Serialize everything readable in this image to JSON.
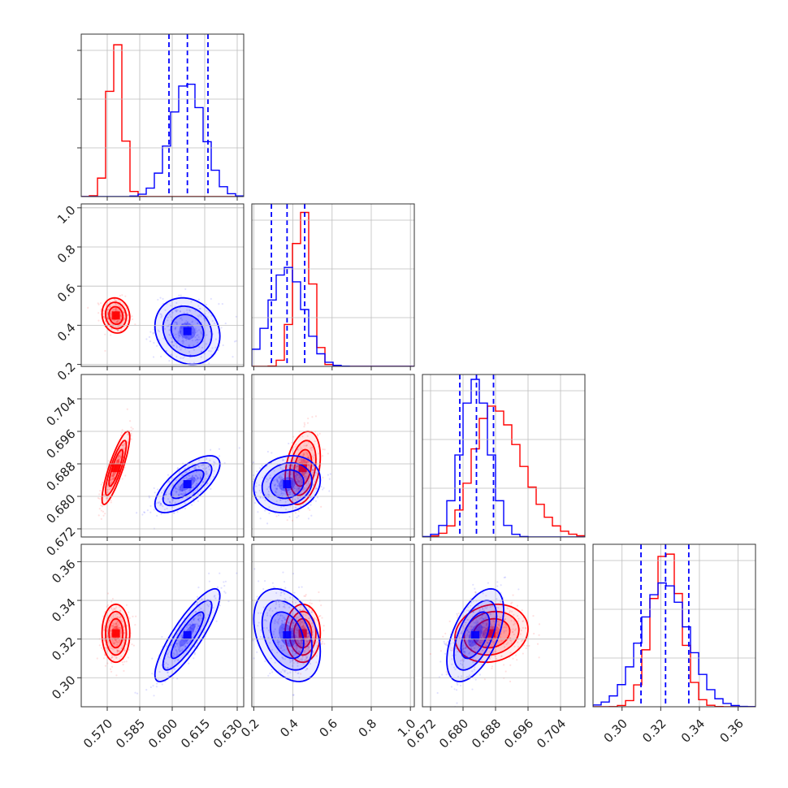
{
  "chart_data": {
    "type": "corner",
    "description_note": "",
    "parameters": [
      {
        "range": [
          0.558,
          0.633
        ],
        "ticks": [
          0.57,
          0.585,
          0.6,
          0.615,
          0.63
        ],
        "tick_labels": [
          "0.570",
          "0.585",
          "0.600",
          "0.615",
          "0.630"
        ]
      },
      {
        "range": [
          0.19,
          1.02
        ],
        "ticks": [
          0.2,
          0.4,
          0.6,
          0.8,
          1.0
        ],
        "tick_labels": [
          "0.2",
          "0.4",
          "0.6",
          "0.8",
          "1.0"
        ]
      },
      {
        "range": [
          0.67,
          0.71
        ],
        "ticks": [
          0.672,
          0.68,
          0.688,
          0.696,
          0.704
        ],
        "tick_labels": [
          "0.672",
          "0.680",
          "0.688",
          "0.696",
          "0.704"
        ]
      },
      {
        "range": [
          0.285,
          0.369
        ],
        "ticks": [
          0.3,
          0.32,
          0.34,
          0.36
        ],
        "tick_labels": [
          "0.30",
          "0.32",
          "0.34",
          "0.36"
        ]
      }
    ],
    "series": [
      {
        "color": "#ff0000",
        "means": [
          0.574,
          0.45,
          0.687,
          0.323
        ],
        "sigmas": [
          0.0032,
          0.045,
          0.0045,
          0.0075
        ],
        "correlations": {
          "1-0": -0.1,
          "2-0": 0.85,
          "2-1": 0.3,
          "3-0": 0.0,
          "3-1": 0.0,
          "3-2": 0.15
        },
        "hist_peaks": [
          1.0,
          1.0,
          0.83,
          1.0
        ]
      },
      {
        "color": "#0000ff",
        "means": [
          0.607,
          0.37,
          0.683,
          0.322
        ],
        "sigmas": [
          0.0075,
          0.085,
          0.0035,
          0.012
        ],
        "correlations": {
          "1-0": -0.15,
          "2-0": 0.7,
          "2-1": 0.15,
          "3-0": 0.85,
          "3-1": -0.35,
          "3-2": 0.55
        },
        "hist_peaks": [
          0.73,
          0.63,
          1.0,
          0.79
        ]
      }
    ],
    "quantile_lines": {
      "color": "#0000ff",
      "style": "dashed",
      "values": [
        [
          0.5985,
          0.607,
          0.6165
        ],
        [
          0.29,
          0.37,
          0.46
        ],
        [
          0.6792,
          0.6833,
          0.6875
        ],
        [
          0.3098,
          0.3225,
          0.3345
        ]
      ]
    },
    "grid": true,
    "legend": "none"
  }
}
